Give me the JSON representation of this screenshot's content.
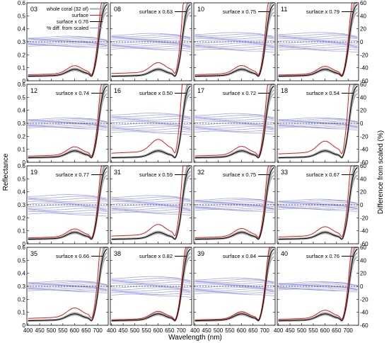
{
  "figure": {
    "ylabel_left": "Reflectance",
    "ylabel_right": "Difference from scaled (%)",
    "xlabel": "Wavelength (nm)",
    "x_ticks": [
      400,
      450,
      500,
      550,
      600,
      650,
      700
    ],
    "y_ticks_left": [
      "0",
      "0.1",
      "0.2",
      "0.3",
      "0.4",
      "0.5",
      "0.6"
    ],
    "y_ticks_right": [
      "-60",
      "-40",
      "-20",
      "0",
      "20",
      "40",
      "60"
    ],
    "legend": [
      {
        "label": "whole coral (32 of)",
        "color": "#a9a9a9"
      },
      {
        "label": "surface",
        "color": "#e0191f"
      },
      {
        "label": "surface x 0.76",
        "color": "#000000"
      },
      {
        "label": "% diff. from scaled",
        "color": "#9a9ae6"
      }
    ],
    "colors": {
      "whole": "#a9a9a9",
      "surface": "#e0191f",
      "scaled": "#000000",
      "diff": "#9a9ae6",
      "zero": "#000000"
    }
  },
  "chart_data": [
    {
      "id": "03",
      "scale_label": "",
      "factor": 0.76,
      "whole_count": 32,
      "amp": 1.0
    },
    {
      "id": "08",
      "scale_label": "surface x 0.63",
      "factor": 0.63,
      "amp": 1.6
    },
    {
      "id": "10",
      "scale_label": "surface x 0.75",
      "factor": 0.75,
      "amp": 1.8
    },
    {
      "id": "11",
      "scale_label": "surface x 0.79",
      "factor": 0.79,
      "amp": 1.8
    },
    {
      "id": "12",
      "scale_label": "surface x 0.74",
      "factor": 0.74,
      "amp": 1.0
    },
    {
      "id": "16",
      "scale_label": "surface x 0.50",
      "factor": 0.5,
      "amp": 2.0
    },
    {
      "id": "17",
      "scale_label": "surface x 0.72",
      "factor": 0.72,
      "amp": 1.9
    },
    {
      "id": "18",
      "scale_label": "surface x 0.54",
      "factor": 0.54,
      "amp": 1.0
    },
    {
      "id": "19",
      "scale_label": "surface x 0.77",
      "factor": 0.77,
      "amp": 2.0
    },
    {
      "id": "31",
      "scale_label": "surface x 0.59",
      "factor": 0.59,
      "amp": 1.8
    },
    {
      "id": "32",
      "scale_label": "surface x 0.75",
      "factor": 0.75,
      "amp": 1.2
    },
    {
      "id": "33",
      "scale_label": "surface x 0.67",
      "factor": 0.67,
      "amp": 1.0
    },
    {
      "id": "35",
      "scale_label": "surface x 0.66",
      "factor": 0.66,
      "amp": 1.0
    },
    {
      "id": "38",
      "scale_label": "surface x 0.82",
      "factor": 0.82,
      "amp": 1.9
    },
    {
      "id": "39",
      "scale_label": "surface x 0.84",
      "factor": 0.84,
      "amp": 1.6
    },
    {
      "id": "40",
      "scale_label": "surface x 0.76",
      "factor": 0.76,
      "amp": 0.8
    }
  ]
}
